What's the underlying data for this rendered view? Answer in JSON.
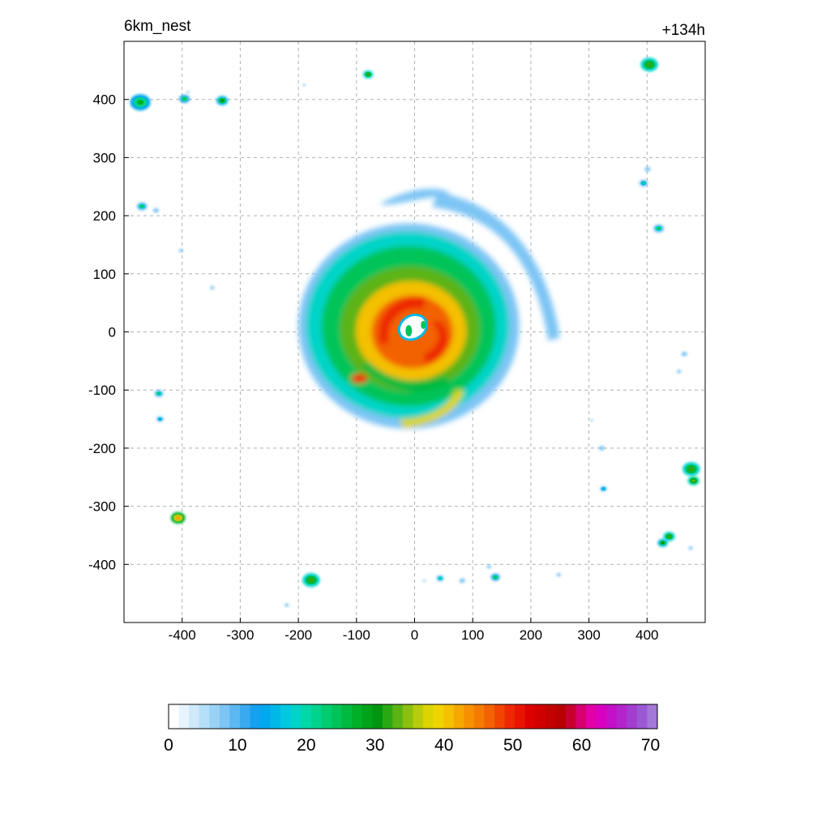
{
  "chart_data": {
    "type": "heatmap",
    "title_left": "6km_nest",
    "title_right": "+134h",
    "xlim": [
      -500,
      500
    ],
    "ylim": [
      -500,
      500
    ],
    "x_ticks": [
      -400,
      -300,
      -200,
      -100,
      0,
      100,
      200,
      300,
      400
    ],
    "y_ticks": [
      400,
      300,
      200,
      100,
      0,
      -100,
      -200,
      -300,
      -400
    ],
    "grid": true,
    "colorbar": {
      "min": 0,
      "max": 71,
      "tick_values": [
        0,
        10,
        20,
        30,
        40,
        50,
        60,
        70
      ],
      "colors": [
        "#ffffff",
        "#e8f4fd",
        "#cfe9fb",
        "#b5def9",
        "#9ad2f6",
        "#7dc5f4",
        "#5cb8f2",
        "#3aaaf0",
        "#16a0f0",
        "#00a8ee",
        "#00b8e8",
        "#00c8e0",
        "#00d4c8",
        "#00d8a8",
        "#00d48c",
        "#00cc70",
        "#00c458",
        "#00ba40",
        "#00b028",
        "#00a418",
        "#009610",
        "#2aa814",
        "#5cb414",
        "#8cc010",
        "#b8cc0c",
        "#dcd400",
        "#f0d400",
        "#f4c000",
        "#f6a800",
        "#f69000",
        "#f47a00",
        "#f26200",
        "#f04400",
        "#ee2800",
        "#e81400",
        "#dc0000",
        "#d00000",
        "#c40000",
        "#b80000",
        "#c80030",
        "#d80070",
        "#e400a8",
        "#d800c0",
        "#c410c8",
        "#b424cc",
        "#a43cd0",
        "#9c58d4",
        "#a478d8"
      ]
    },
    "storm": {
      "center": [
        0,
        0
      ],
      "outer_rain_radius_km": 200,
      "eye_radius_km": 25,
      "max_value_range": [
        45,
        55
      ]
    },
    "cells": [
      {
        "x": -472,
        "y": 395,
        "r": 14,
        "v": 26
      },
      {
        "x": -396,
        "y": 401,
        "r": 7,
        "v": 24
      },
      {
        "x": -331,
        "y": 398,
        "r": 8,
        "v": 28
      },
      {
        "x": -80,
        "y": 443,
        "r": 7,
        "v": 30
      },
      {
        "x": 404,
        "y": 460,
        "r": 12,
        "v": 30
      },
      {
        "x": -469,
        "y": 216,
        "r": 7,
        "v": 22
      },
      {
        "x": -445,
        "y": 209,
        "r": 4,
        "v": 20
      },
      {
        "x": 394,
        "y": 256,
        "r": 6,
        "v": 20
      },
      {
        "x": 401,
        "y": 280,
        "r": 4,
        "v": 18
      },
      {
        "x": 420,
        "y": 178,
        "r": 7,
        "v": 22
      },
      {
        "x": -402,
        "y": 140,
        "r": 3,
        "v": 18
      },
      {
        "x": -348,
        "y": 76,
        "r": 3,
        "v": 18
      },
      {
        "x": -440,
        "y": -106,
        "r": 6,
        "v": 22
      },
      {
        "x": -438,
        "y": -150,
        "r": 5,
        "v": 20
      },
      {
        "x": 464,
        "y": -38,
        "r": 4,
        "v": 20
      },
      {
        "x": 455,
        "y": -68,
        "r": 3,
        "v": 16
      },
      {
        "x": 322,
        "y": -200,
        "r": 4,
        "v": 18
      },
      {
        "x": 476,
        "y": -236,
        "r": 12,
        "v": 30
      },
      {
        "x": 480,
        "y": -256,
        "r": 8,
        "v": 32
      },
      {
        "x": 325,
        "y": -270,
        "r": 5,
        "v": 20
      },
      {
        "x": -407,
        "y": -320,
        "r": 10,
        "v": 40
      },
      {
        "x": 438,
        "y": -352,
        "r": 8,
        "v": 30
      },
      {
        "x": 427,
        "y": -363,
        "r": 7,
        "v": 28
      },
      {
        "x": 475,
        "y": -372,
        "r": 3,
        "v": 16
      },
      {
        "x": -178,
        "y": -427,
        "r": 12,
        "v": 30
      },
      {
        "x": 44,
        "y": -424,
        "r": 5,
        "v": 22
      },
      {
        "x": 82,
        "y": -428,
        "r": 4,
        "v": 20
      },
      {
        "x": 139,
        "y": -422,
        "r": 6,
        "v": 24
      },
      {
        "x": 128,
        "y": -404,
        "r": 3,
        "v": 16
      },
      {
        "x": -220,
        "y": -470,
        "r": 3,
        "v": 16
      },
      {
        "x": 248,
        "y": -418,
        "r": 3,
        "v": 14
      },
      {
        "x": 305,
        "y": -152,
        "r": 2,
        "v": 14
      },
      {
        "x": -190,
        "y": 425,
        "r": 2,
        "v": 14
      },
      {
        "x": -390,
        "y": 413,
        "r": 2,
        "v": 14
      },
      {
        "x": 17,
        "y": -428,
        "r": 2,
        "v": 14
      }
    ]
  }
}
